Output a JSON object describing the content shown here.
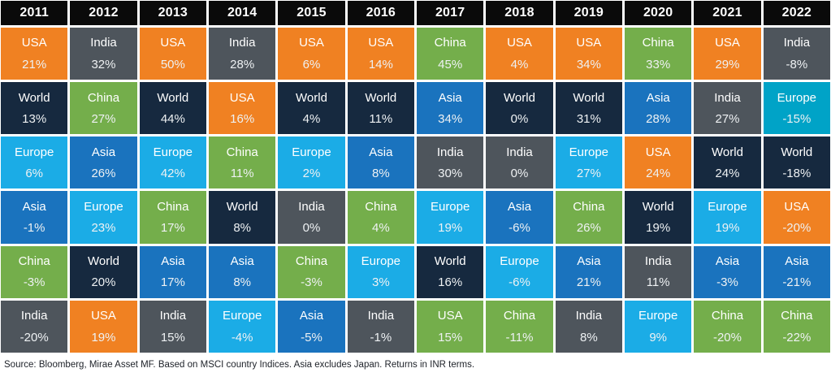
{
  "palette": {
    "orange": "#F08122",
    "slate_gray": "#4E555C",
    "navy": "#16293F",
    "sky_blue": "#1BACE6",
    "teal_blue": "#00A3C7",
    "medium_blue": "#1A73BE",
    "green": "#74AE4B",
    "header_bg": "#0A0A0A",
    "header_text": "#FFFFFF",
    "cell_text": "#FFFFFF"
  },
  "table": {
    "columns": [
      {
        "year": "2011",
        "cells": [
          {
            "label": "USA",
            "value": "21%",
            "color": "orange"
          },
          {
            "label": "World",
            "value": "13%",
            "color": "navy"
          },
          {
            "label": "Europe",
            "value": "6%",
            "color": "sky_blue"
          },
          {
            "label": "Asia",
            "value": "-1%",
            "color": "medium_blue"
          },
          {
            "label": "China",
            "value": "-3%",
            "color": "green"
          },
          {
            "label": "India",
            "value": "-20%",
            "color": "slate_gray"
          }
        ]
      },
      {
        "year": "2012",
        "cells": [
          {
            "label": "India",
            "value": "32%",
            "color": "slate_gray"
          },
          {
            "label": "China",
            "value": "27%",
            "color": "green"
          },
          {
            "label": "Asia",
            "value": "26%",
            "color": "medium_blue"
          },
          {
            "label": "Europe",
            "value": "23%",
            "color": "sky_blue"
          },
          {
            "label": "World",
            "value": "20%",
            "color": "navy"
          },
          {
            "label": "USA",
            "value": "19%",
            "color": "orange"
          }
        ]
      },
      {
        "year": "2013",
        "cells": [
          {
            "label": "USA",
            "value": "50%",
            "color": "orange"
          },
          {
            "label": "World",
            "value": "44%",
            "color": "navy"
          },
          {
            "label": "Europe",
            "value": "42%",
            "color": "sky_blue"
          },
          {
            "label": "China",
            "value": "17%",
            "color": "green"
          },
          {
            "label": "Asia",
            "value": "17%",
            "color": "medium_blue"
          },
          {
            "label": "India",
            "value": "15%",
            "color": "slate_gray"
          }
        ]
      },
      {
        "year": "2014",
        "cells": [
          {
            "label": "India",
            "value": "28%",
            "color": "slate_gray"
          },
          {
            "label": "USA",
            "value": "16%",
            "color": "orange"
          },
          {
            "label": "China",
            "value": "11%",
            "color": "green"
          },
          {
            "label": "World",
            "value": "8%",
            "color": "navy"
          },
          {
            "label": "Asia",
            "value": "8%",
            "color": "medium_blue"
          },
          {
            "label": "Europe",
            "value": "-4%",
            "color": "sky_blue"
          }
        ]
      },
      {
        "year": "2015",
        "cells": [
          {
            "label": "USA",
            "value": "6%",
            "color": "orange"
          },
          {
            "label": "World",
            "value": "4%",
            "color": "navy"
          },
          {
            "label": "Europe",
            "value": "2%",
            "color": "sky_blue"
          },
          {
            "label": "India",
            "value": "0%",
            "color": "slate_gray"
          },
          {
            "label": "China",
            "value": "-3%",
            "color": "green"
          },
          {
            "label": "Asia",
            "value": "-5%",
            "color": "medium_blue"
          }
        ]
      },
      {
        "year": "2016",
        "cells": [
          {
            "label": "USA",
            "value": "14%",
            "color": "orange"
          },
          {
            "label": "World",
            "value": "11%",
            "color": "navy"
          },
          {
            "label": "Asia",
            "value": "8%",
            "color": "medium_blue"
          },
          {
            "label": "China",
            "value": "4%",
            "color": "green"
          },
          {
            "label": "Europe",
            "value": "3%",
            "color": "sky_blue"
          },
          {
            "label": "India",
            "value": "-1%",
            "color": "slate_gray"
          }
        ]
      },
      {
        "year": "2017",
        "cells": [
          {
            "label": "China",
            "value": "45%",
            "color": "green"
          },
          {
            "label": "Asia",
            "value": "34%",
            "color": "medium_blue"
          },
          {
            "label": "India",
            "value": "30%",
            "color": "slate_gray"
          },
          {
            "label": "Europe",
            "value": "19%",
            "color": "sky_blue"
          },
          {
            "label": "World",
            "value": "16%",
            "color": "navy"
          },
          {
            "label": "USA",
            "value": "15%",
            "color": "green"
          }
        ]
      },
      {
        "year": "2018",
        "cells": [
          {
            "label": "USA",
            "value": "4%",
            "color": "orange"
          },
          {
            "label": "World",
            "value": "0%",
            "color": "navy"
          },
          {
            "label": "India",
            "value": "0%",
            "color": "slate_gray"
          },
          {
            "label": "Asia",
            "value": "-6%",
            "color": "medium_blue"
          },
          {
            "label": "Europe",
            "value": "-6%",
            "color": "sky_blue"
          },
          {
            "label": "China",
            "value": "-11%",
            "color": "green"
          }
        ]
      },
      {
        "year": "2019",
        "cells": [
          {
            "label": "USA",
            "value": "34%",
            "color": "orange"
          },
          {
            "label": "World",
            "value": "31%",
            "color": "navy"
          },
          {
            "label": "Europe",
            "value": "27%",
            "color": "sky_blue"
          },
          {
            "label": "China",
            "value": "26%",
            "color": "green"
          },
          {
            "label": "Asia",
            "value": "21%",
            "color": "medium_blue"
          },
          {
            "label": "India",
            "value": "8%",
            "color": "slate_gray"
          }
        ]
      },
      {
        "year": "2020",
        "cells": [
          {
            "label": "China",
            "value": "33%",
            "color": "green"
          },
          {
            "label": "Asia",
            "value": "28%",
            "color": "medium_blue"
          },
          {
            "label": "USA",
            "value": "24%",
            "color": "orange"
          },
          {
            "label": "World",
            "value": "19%",
            "color": "navy"
          },
          {
            "label": "India",
            "value": "11%",
            "color": "slate_gray"
          },
          {
            "label": "Europe",
            "value": "9%",
            "color": "sky_blue"
          }
        ]
      },
      {
        "year": "2021",
        "cells": [
          {
            "label": "USA",
            "value": "29%",
            "color": "orange"
          },
          {
            "label": "India",
            "value": "27%",
            "color": "slate_gray"
          },
          {
            "label": "World",
            "value": "24%",
            "color": "navy"
          },
          {
            "label": "Europe",
            "value": "19%",
            "color": "sky_blue"
          },
          {
            "label": "Asia",
            "value": "-3%",
            "color": "medium_blue"
          },
          {
            "label": "China",
            "value": "-20%",
            "color": "green"
          }
        ]
      },
      {
        "year": "2022",
        "cells": [
          {
            "label": "India",
            "value": "-8%",
            "color": "slate_gray"
          },
          {
            "label": "Europe",
            "value": "-15%",
            "color": "teal_blue"
          },
          {
            "label": "World",
            "value": "-18%",
            "color": "navy"
          },
          {
            "label": "USA",
            "value": "-20%",
            "color": "orange"
          },
          {
            "label": "Asia",
            "value": "-21%",
            "color": "medium_blue"
          },
          {
            "label": "China",
            "value": "-22%",
            "color": "green"
          }
        ]
      }
    ]
  },
  "footer": {
    "source": "Source: Bloomberg, Mirae Asset MF. Based on MSCI country Indices. Asia excludes Japan. Returns in INR terms."
  },
  "chart_data": {
    "type": "heatmap",
    "subtype": "ranked-return-quilt",
    "title": "",
    "unit": "%",
    "categories": [
      "2011",
      "2012",
      "2013",
      "2014",
      "2015",
      "2016",
      "2017",
      "2018",
      "2019",
      "2020",
      "2021",
      "2022"
    ],
    "series": [
      {
        "name": "USA",
        "values": [
          21,
          19,
          50,
          16,
          6,
          14,
          15,
          4,
          34,
          24,
          29,
          -20
        ]
      },
      {
        "name": "India",
        "values": [
          -20,
          32,
          15,
          28,
          0,
          -1,
          30,
          0,
          8,
          11,
          27,
          -8
        ]
      },
      {
        "name": "World",
        "values": [
          13,
          20,
          44,
          8,
          4,
          11,
          16,
          0,
          31,
          19,
          24,
          -18
        ]
      },
      {
        "name": "Europe",
        "values": [
          6,
          23,
          42,
          -4,
          2,
          3,
          19,
          -6,
          27,
          9,
          19,
          -15
        ]
      },
      {
        "name": "Asia",
        "values": [
          -1,
          26,
          17,
          8,
          -5,
          8,
          34,
          -6,
          21,
          28,
          -3,
          -21
        ]
      },
      {
        "name": "China",
        "values": [
          -3,
          27,
          17,
          11,
          -3,
          4,
          45,
          -11,
          26,
          33,
          -20,
          -22
        ]
      }
    ],
    "layout": "each year column lists markets ranked best-to-worst top-to-bottom",
    "legend_position": "none",
    "grid": false,
    "annotation": "Source: Bloomberg, Mirae Asset MF. Based on MSCI country Indices. Asia excludes Japan. Returns in INR terms."
  }
}
